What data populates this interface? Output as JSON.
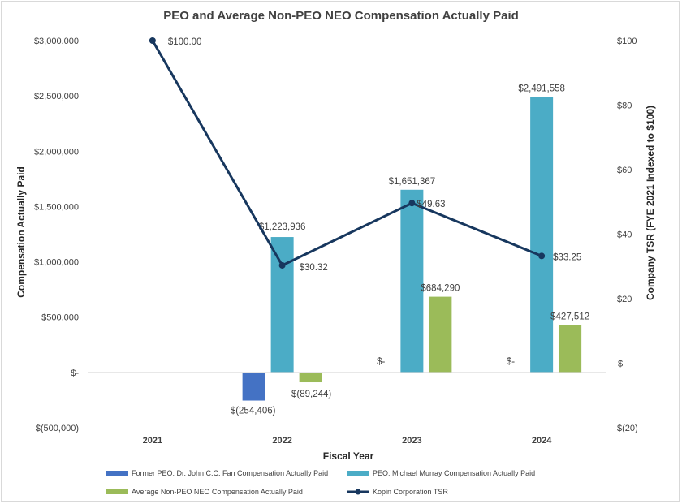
{
  "chart_data": {
    "type": "bar",
    "title": "PEO and Average Non-PEO NEO Compensation Actually Paid",
    "xlabel": "Fiscal Year",
    "ylabel": "Compensation Actually Paid",
    "y2label": "Company TSR (FYE 2021 Indexed to $100)",
    "categories": [
      "2021",
      "2022",
      "2023",
      "2024"
    ],
    "ylim": [
      -500000,
      3000000
    ],
    "y2lim": [
      -20,
      100
    ],
    "y_ticks": [
      {
        "value": 3000000,
        "label": "$3,000,000"
      },
      {
        "value": 2500000,
        "label": "$2,500,000"
      },
      {
        "value": 2000000,
        "label": "$2,000,000"
      },
      {
        "value": 1500000,
        "label": "$1,500,000"
      },
      {
        "value": 1000000,
        "label": "$1,000,000"
      },
      {
        "value": 500000,
        "label": "$500,000"
      },
      {
        "value": 0,
        "label": "$-"
      },
      {
        "value": -500000,
        "label": "$(500,000)"
      }
    ],
    "y2_ticks": [
      {
        "value": 100,
        "label": "$100"
      },
      {
        "value": 80,
        "label": "$80"
      },
      {
        "value": 60,
        "label": "$60"
      },
      {
        "value": 40,
        "label": "$40"
      },
      {
        "value": 20,
        "label": "$20"
      },
      {
        "value": 0,
        "label": "$-"
      },
      {
        "value": -20,
        "label": "$(20)"
      }
    ],
    "grid": false,
    "legend_position": "bottom",
    "series": [
      {
        "name": "Former PEO: Dr. John C.C. Fan Compensation Actually Paid",
        "type": "bar",
        "color": "#4472c4",
        "values": [
          null,
          -254406,
          0,
          0
        ],
        "labels": [
          "",
          "$(254,406)",
          "$-",
          "$-"
        ]
      },
      {
        "name": "PEO: Michael Murray Compensation Actually Paid",
        "type": "bar",
        "color": "#4bacc6",
        "values": [
          null,
          1223936,
          1651367,
          2491558
        ],
        "labels": [
          "",
          "$1,223,936",
          "$1,651,367",
          "$2,491,558"
        ]
      },
      {
        "name": "Average Non-PEO NEO Compensation Actually Paid",
        "type": "bar",
        "color": "#9bbb59",
        "values": [
          null,
          -89244,
          684290,
          427512
        ],
        "labels": [
          "",
          "$(89,244)",
          "$684,290",
          "$427,512"
        ]
      },
      {
        "name": "Kopin Corporation TSR",
        "type": "line",
        "axis": "secondary",
        "color": "#17375e",
        "values": [
          100,
          30.32,
          49.63,
          33.25
        ],
        "labels": [
          "$100.00",
          "$30.32",
          "$49.63",
          "$33.25"
        ]
      }
    ]
  }
}
